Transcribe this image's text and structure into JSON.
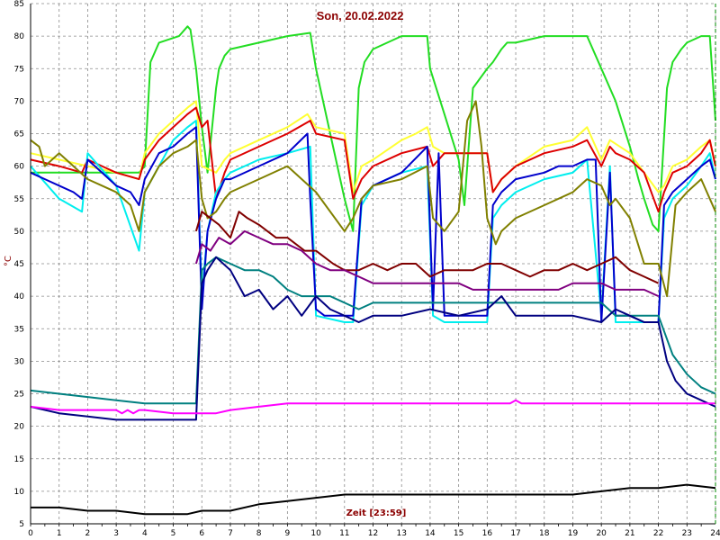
{
  "chart_data": {
    "type": "line",
    "title": "Son, 20.02.2022",
    "xlabel": "Zeit [23:59]",
    "ylabel": "°C",
    "xlim": [
      0,
      24
    ],
    "ylim": [
      5,
      85
    ],
    "x_ticks": [
      "0",
      "1",
      "2",
      "3",
      "4",
      "5",
      "6",
      "7",
      "8",
      "9",
      "10",
      "11",
      "12",
      "13",
      "14",
      "15",
      "16",
      "17",
      "18",
      "19",
      "20",
      "21",
      "22",
      "23",
      "24"
    ],
    "y_ticks": [
      "5",
      "10",
      "15",
      "20",
      "25",
      "30",
      "35",
      "40",
      "45",
      "50",
      "55",
      "60",
      "65",
      "70",
      "75",
      "80",
      "85"
    ],
    "grid": true,
    "current_time_marker": 24,
    "series": [
      {
        "color": "#22dd22",
        "x": [
          0,
          3.8,
          4,
          4.2,
          4.5,
          5.2,
          5.5,
          5.6,
          5.8,
          6.0,
          6.2,
          6.5,
          6.6,
          6.8,
          7,
          8,
          9,
          9.8,
          10,
          10.5,
          11,
          11.3,
          11.5,
          11.7,
          12,
          13,
          13.9,
          14,
          14.5,
          15,
          15.2,
          15.5,
          16,
          16.2,
          16.5,
          16.7,
          17,
          18,
          19,
          19.5,
          20,
          20.5,
          21,
          21.3,
          21.5,
          21.8,
          22,
          22.3,
          22.5,
          22.8,
          23,
          23.5,
          23.8,
          24
        ],
        "y": [
          59,
          59,
          60,
          76,
          79,
          80,
          81.5,
          81,
          75,
          66,
          59,
          72,
          75,
          77,
          78,
          79,
          80,
          80.5,
          75,
          65,
          55,
          50,
          72,
          76,
          78,
          80,
          80,
          75,
          68,
          61,
          54,
          72,
          75,
          76,
          78,
          79,
          79,
          80,
          80,
          80,
          75,
          70,
          63,
          58,
          55,
          51,
          50,
          72,
          76,
          78,
          79,
          80,
          80,
          67
        ]
      },
      {
        "color": "#ffff33",
        "x": [
          0,
          1,
          2,
          3,
          3.8,
          4,
          4.5,
          5,
          5.5,
          5.8,
          6.0,
          6.5,
          6.8,
          7,
          8,
          9,
          9.7,
          10,
          11,
          11.3,
          11.6,
          12,
          13,
          13.5,
          13.9,
          14.1,
          14.5,
          15,
          16,
          16.2,
          16.5,
          17,
          18,
          19,
          19.5,
          20,
          20.3,
          21,
          21.5,
          22,
          22.2,
          22.5,
          23,
          23.5,
          23.8,
          24
        ],
        "y": [
          62,
          61,
          60,
          59,
          58,
          62,
          65,
          67,
          69,
          70,
          60,
          59,
          61,
          62,
          64,
          66,
          68,
          66,
          65,
          56,
          60,
          61,
          64,
          65,
          66,
          63,
          62,
          62,
          62,
          56,
          58,
          60,
          63,
          64,
          66,
          61,
          64,
          62,
          59,
          56,
          57,
          60,
          61,
          63,
          64,
          60
        ]
      },
      {
        "color": "#dd0000",
        "x": [
          0,
          1,
          1.8,
          2,
          3,
          3.8,
          4,
          4.5,
          5,
          5.5,
          5.8,
          6,
          6.2,
          6.5,
          6.8,
          7,
          8,
          9,
          9.8,
          10,
          11,
          11.3,
          11.6,
          12,
          13,
          13.9,
          14.1,
          14.5,
          15,
          16,
          16.2,
          16.5,
          17,
          18,
          19,
          19.5,
          20,
          20.3,
          20.5,
          21,
          21.5,
          22,
          22.2,
          22.5,
          23,
          23.5,
          23.8,
          24
        ],
        "y": [
          61,
          60,
          59,
          61,
          59,
          58,
          61,
          64,
          66,
          68,
          69,
          66,
          67,
          55,
          59,
          61,
          63,
          65,
          67,
          65,
          64,
          55,
          58,
          60,
          62,
          63,
          60,
          62,
          62,
          62,
          56,
          58,
          60,
          62,
          63,
          64,
          60,
          63,
          62,
          61,
          59,
          53,
          56,
          59,
          60,
          62,
          64,
          60
        ]
      },
      {
        "color": "#00eeee",
        "x": [
          0,
          1,
          1.8,
          2,
          3,
          3.8,
          4,
          4.5,
          5,
          5.5,
          5.8,
          6,
          6.2,
          6.5,
          6.8,
          7,
          8,
          9,
          9.8,
          10,
          11,
          11.3,
          11.6,
          12,
          13,
          13.9,
          14.1,
          14.5,
          15,
          16,
          16.2,
          16.5,
          17,
          18,
          19,
          19.5,
          20,
          20.3,
          20.5,
          21,
          21.5,
          22,
          22.2,
          22.5,
          23,
          23.5,
          23.8,
          24
        ],
        "y": [
          60,
          55,
          53,
          62,
          57,
          47,
          56,
          60,
          64,
          66,
          67,
          40,
          50,
          56,
          58,
          59,
          61,
          62,
          63,
          37,
          36,
          36,
          54,
          57,
          59,
          60,
          37,
          36,
          36,
          36,
          52,
          54,
          56,
          58,
          59,
          61,
          37,
          60,
          36,
          36,
          36,
          36,
          52,
          55,
          57,
          60,
          62,
          58
        ]
      },
      {
        "color": "#0000cc",
        "x": [
          0,
          0.5,
          1,
          1.5,
          1.8,
          2,
          2.5,
          3,
          3.5,
          3.8,
          4,
          4.5,
          5,
          5.5,
          5.8,
          6,
          6.2,
          6.5,
          6.8,
          7,
          8,
          9,
          9.7,
          9.8,
          10,
          10.3,
          11,
          11.3,
          11.6,
          12,
          13,
          13.9,
          14.1,
          14.3,
          14.5,
          15,
          15.5,
          16,
          16.2,
          16.5,
          17,
          18,
          18.5,
          19,
          19.5,
          19.8,
          20,
          20.3,
          20.5,
          21,
          21.5,
          21.8,
          22,
          22.2,
          22.5,
          23,
          23.5,
          23.8,
          24
        ],
        "y": [
          59,
          58,
          57,
          56,
          55,
          61,
          59,
          57,
          56,
          54,
          58,
          62,
          63,
          65,
          66,
          38,
          50,
          55,
          58,
          58,
          60,
          62,
          65,
          55,
          38,
          37,
          37,
          37,
          55,
          57,
          59,
          63,
          38,
          62,
          37,
          37,
          37,
          37,
          54,
          56,
          58,
          59,
          60,
          60,
          61,
          61,
          36,
          59,
          37,
          37,
          36,
          36,
          36,
          54,
          56,
          58,
          60,
          61,
          58
        ]
      },
      {
        "color": "#808000",
        "x": [
          0,
          0.3,
          0.5,
          1,
          1.5,
          2,
          2.5,
          3,
          3.5,
          3.8,
          4,
          4.5,
          5,
          5.5,
          5.8,
          6,
          6.2,
          6.5,
          6.8,
          7,
          8,
          9,
          10,
          11,
          11.3,
          11.6,
          12,
          13,
          13.9,
          14.1,
          14.5,
          15,
          15.3,
          15.6,
          15.8,
          16,
          16.3,
          16.5,
          17,
          18,
          19,
          19.5,
          20,
          20.3,
          20.5,
          21,
          21.5,
          22,
          22.3,
          22.6,
          23,
          23.5,
          24
        ],
        "y": [
          64,
          63,
          60,
          62,
          60,
          58,
          57,
          56,
          54,
          50,
          56,
          60,
          62,
          63,
          64,
          55,
          52,
          53,
          55,
          56,
          58,
          60,
          56,
          50,
          52,
          55,
          57,
          58,
          60,
          52,
          50,
          53,
          67,
          70,
          63,
          52,
          48,
          50,
          52,
          54,
          56,
          58,
          57,
          54,
          55,
          52,
          45,
          45,
          40,
          54,
          56,
          58,
          53
        ]
      },
      {
        "color": "#800000",
        "x": [
          5.8,
          6,
          6.3,
          6.6,
          7,
          7.3,
          7.6,
          8,
          8.3,
          8.6,
          9,
          9.3,
          9.6,
          10,
          10.3,
          10.6,
          11,
          11.5,
          12,
          12.5,
          13,
          13.5,
          14,
          14.5,
          15,
          15.5,
          16,
          16.5,
          17,
          17.5,
          18,
          18.5,
          19,
          19.5,
          20,
          20.5,
          21,
          21.5,
          22
        ],
        "y": [
          50,
          53,
          52,
          51,
          49,
          53,
          52,
          51,
          50,
          49,
          49,
          48,
          47,
          47,
          46,
          45,
          44,
          44,
          45,
          44,
          45,
          45,
          43,
          44,
          44,
          44,
          45,
          45,
          44,
          43,
          44,
          44,
          45,
          44,
          45,
          46,
          44,
          43,
          42
        ]
      },
      {
        "color": "#800080",
        "x": [
          5.8,
          6,
          6.3,
          6.6,
          7,
          7.5,
          8,
          8.5,
          9,
          9.5,
          10,
          10.5,
          11,
          11.5,
          12,
          12.5,
          13,
          13.5,
          14,
          14.5,
          15,
          15.5,
          16,
          16.5,
          17,
          17.5,
          18,
          18.5,
          19,
          19.5,
          20,
          20.5,
          21,
          21.5,
          22
        ],
        "y": [
          45,
          48,
          47,
          49,
          48,
          50,
          49,
          48,
          48,
          47,
          45,
          44,
          44,
          43,
          42,
          42,
          42,
          42,
          42,
          42,
          42,
          41,
          41,
          41,
          41,
          41,
          41,
          41,
          42,
          42,
          42,
          41,
          41,
          41,
          40
        ]
      },
      {
        "color": "#008080",
        "x": [
          0,
          1,
          2,
          3,
          4,
          5,
          5.8,
          6,
          6.2,
          6.5,
          7,
          7.5,
          8,
          8.5,
          9,
          9.5,
          10,
          10.5,
          11,
          11.5,
          12,
          13,
          14,
          15,
          16,
          16.5,
          17,
          18,
          19,
          20,
          20.5,
          21,
          21.5,
          22,
          22.5,
          23,
          23.5,
          24
        ],
        "y": [
          25.5,
          25,
          24.5,
          24,
          23.5,
          23.5,
          23.5,
          44,
          45,
          46,
          45,
          44,
          44,
          43,
          41,
          40,
          40,
          40,
          39,
          38,
          39,
          39,
          39,
          39,
          39,
          39,
          39,
          39,
          39,
          39,
          37,
          37,
          37,
          37,
          31,
          28,
          26,
          25
        ]
      },
      {
        "color": "#000080",
        "x": [
          0,
          1,
          2,
          3,
          4,
          5,
          5.8,
          6,
          6.2,
          6.5,
          7,
          7.5,
          8,
          8.5,
          9,
          9.5,
          10,
          10.5,
          11,
          11.5,
          12,
          13,
          14,
          15,
          16,
          16.5,
          17,
          18,
          19,
          20,
          20.5,
          21,
          21.5,
          22,
          22.3,
          22.6,
          23,
          23.5,
          24
        ],
        "y": [
          23,
          22,
          21.5,
          21,
          21,
          21,
          21,
          42,
          44,
          46,
          44,
          40,
          41,
          38,
          40,
          37,
          40,
          38,
          37,
          36,
          37,
          37,
          38,
          37,
          38,
          40,
          37,
          37,
          37,
          36,
          38,
          37,
          36,
          36,
          30,
          27,
          25,
          24,
          23
        ]
      },
      {
        "color": "#ff00ff",
        "x": [
          0,
          1,
          2,
          3,
          3.2,
          3.4,
          3.6,
          3.8,
          4,
          5,
          6,
          6.5,
          7,
          8,
          9,
          10,
          11,
          12,
          13,
          14,
          15,
          16,
          16.8,
          17,
          17.2,
          17.5,
          18,
          19,
          20,
          21,
          22,
          23,
          24
        ],
        "y": [
          23,
          22.5,
          22.5,
          22.5,
          22,
          22.5,
          22,
          22.5,
          22.5,
          22,
          22,
          22,
          22.5,
          23,
          23.5,
          23.5,
          23.5,
          23.5,
          23.5,
          23.5,
          23.5,
          23.5,
          23.5,
          24,
          23.5,
          23.5,
          23.5,
          23.5,
          23.5,
          23.5,
          23.5,
          23.5,
          23.5
        ]
      },
      {
        "color": "#000000",
        "x": [
          0,
          1,
          2,
          3,
          4,
          5,
          5.5,
          6,
          7,
          8,
          9,
          10,
          11,
          12,
          13,
          14,
          15,
          16,
          17,
          18,
          19,
          20,
          21,
          22,
          23,
          24
        ],
        "y": [
          7.5,
          7.5,
          7,
          7,
          6.5,
          6.5,
          6.5,
          7,
          7,
          8,
          8.5,
          9,
          9.5,
          9.5,
          9.5,
          9.5,
          9.5,
          9.5,
          9.5,
          9.5,
          9.5,
          10,
          10.5,
          10.5,
          11,
          10.5
        ]
      }
    ]
  }
}
